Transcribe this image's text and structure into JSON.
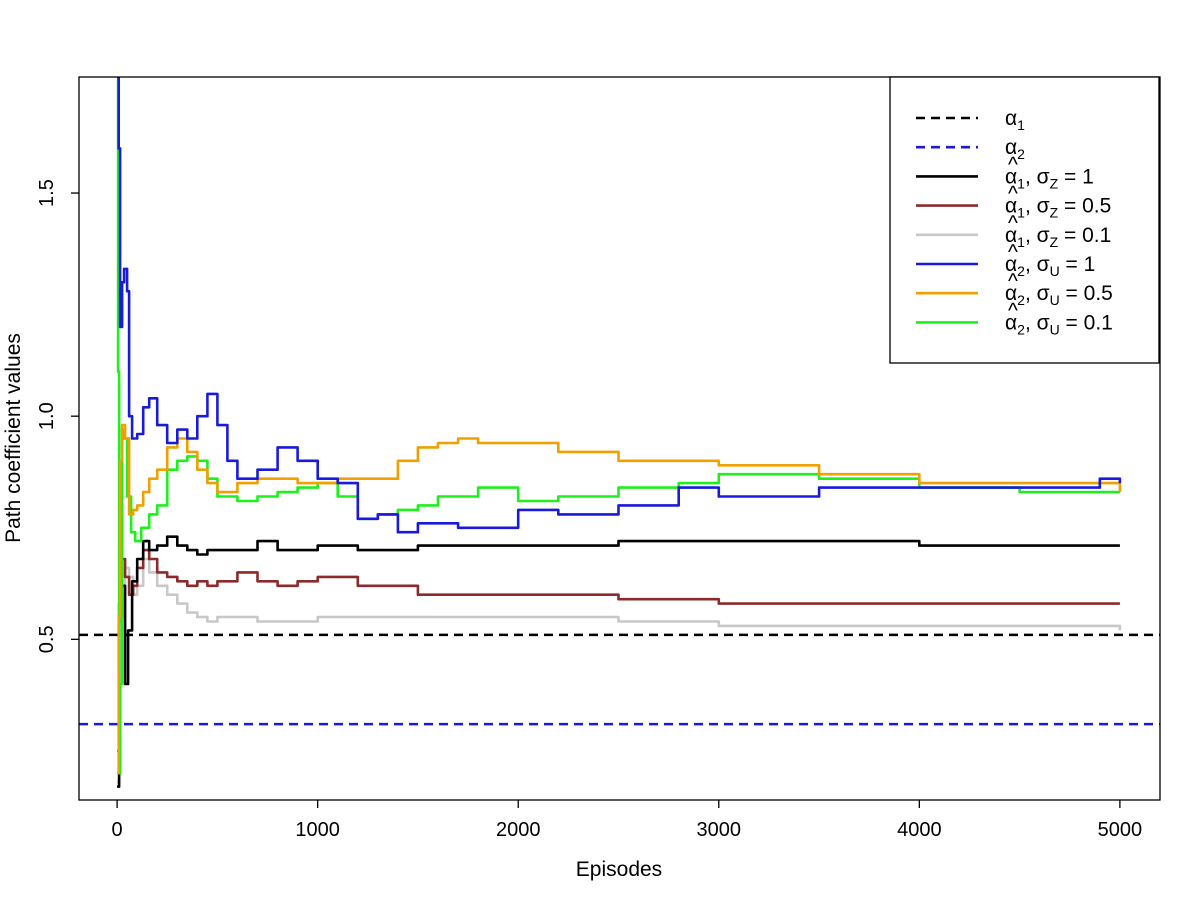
{
  "chart_data": {
    "type": "line",
    "title": "",
    "xlabel": "Episodes",
    "ylabel": "Path coefficient values",
    "xlim": [
      -190,
      5200
    ],
    "ylim": [
      0.14,
      1.76
    ],
    "x_ticks": [
      "0",
      "1000",
      "2000",
      "3000",
      "4000",
      "5000"
    ],
    "y_ticks": [
      "0.5",
      "1.0",
      "1.5"
    ],
    "grid": false,
    "legend_position": "top-right",
    "reference_lines": [
      {
        "name": "α1",
        "label_base": "α",
        "label_sub": "1",
        "value": 0.51,
        "color": "#000000",
        "dash": true
      },
      {
        "name": "α2",
        "label_base": "α",
        "label_sub": "2",
        "value": 0.31,
        "color": "#1a1adb",
        "dash": true
      }
    ],
    "series": [
      {
        "name": "α̂1, σZ = 1",
        "label_base": "α",
        "label_sub": "1",
        "sigma_sub": "Z",
        "label_value": "= 1",
        "color": "#000000",
        "x": [
          0,
          10,
          25,
          40,
          55,
          75,
          100,
          130,
          160,
          200,
          250,
          300,
          350,
          400,
          450,
          500,
          600,
          700,
          800,
          900,
          1000,
          1200,
          1500,
          2000,
          2500,
          3000,
          3500,
          4000,
          4500,
          5000
        ],
        "y": [
          0.17,
          0.55,
          0.62,
          0.4,
          0.52,
          0.63,
          0.68,
          0.72,
          0.7,
          0.71,
          0.73,
          0.71,
          0.7,
          0.69,
          0.7,
          0.7,
          0.7,
          0.72,
          0.7,
          0.7,
          0.71,
          0.7,
          0.71,
          0.71,
          0.72,
          0.72,
          0.72,
          0.71,
          0.71,
          0.71
        ]
      },
      {
        "name": "α̂1, σZ = 0.5",
        "label_base": "α",
        "label_sub": "1",
        "sigma_sub": "Z",
        "label_value": "= 0.5",
        "color": "#8b2b2b",
        "x": [
          0,
          10,
          25,
          40,
          60,
          80,
          100,
          130,
          160,
          200,
          250,
          300,
          350,
          400,
          450,
          500,
          600,
          700,
          800,
          900,
          1000,
          1200,
          1500,
          2000,
          2500,
          3000,
          3500,
          4000,
          4500,
          5000
        ],
        "y": [
          0.25,
          0.58,
          0.68,
          0.64,
          0.6,
          0.62,
          0.66,
          0.7,
          0.68,
          0.65,
          0.64,
          0.63,
          0.62,
          0.63,
          0.62,
          0.63,
          0.65,
          0.63,
          0.62,
          0.63,
          0.64,
          0.62,
          0.6,
          0.6,
          0.59,
          0.58,
          0.58,
          0.58,
          0.58,
          0.58
        ]
      },
      {
        "name": "α̂1, σZ = 0.1",
        "label_base": "α",
        "label_sub": "1",
        "sigma_sub": "Z",
        "label_value": "= 0.1",
        "color": "#c8c8c8",
        "x": [
          0,
          10,
          25,
          40,
          60,
          80,
          100,
          130,
          160,
          200,
          250,
          300,
          350,
          400,
          450,
          500,
          600,
          700,
          800,
          900,
          1000,
          1200,
          1500,
          2000,
          2500,
          3000,
          3500,
          4000,
          4500,
          5000
        ],
        "y": [
          0.18,
          0.54,
          0.62,
          0.66,
          0.64,
          0.6,
          0.62,
          0.68,
          0.65,
          0.62,
          0.6,
          0.58,
          0.56,
          0.55,
          0.54,
          0.55,
          0.55,
          0.54,
          0.54,
          0.54,
          0.55,
          0.55,
          0.55,
          0.55,
          0.54,
          0.53,
          0.53,
          0.53,
          0.53,
          0.52
        ]
      },
      {
        "name": "α̂2, σU = 1",
        "label_base": "α",
        "label_sub": "2",
        "sigma_sub": "U",
        "label_value": "= 1",
        "color": "#1a1adb",
        "x": [
          0,
          8,
          15,
          25,
          35,
          50,
          60,
          75,
          100,
          130,
          160,
          200,
          250,
          300,
          350,
          400,
          450,
          500,
          550,
          600,
          700,
          800,
          900,
          1000,
          1100,
          1200,
          1300,
          1400,
          1500,
          1700,
          2000,
          2200,
          2500,
          2800,
          3000,
          3500,
          4000,
          4500,
          4900,
          5000
        ],
        "y": [
          1.76,
          1.6,
          1.2,
          1.3,
          1.33,
          1.28,
          1.0,
          0.95,
          0.96,
          1.02,
          1.04,
          0.98,
          0.94,
          0.97,
          0.95,
          1.0,
          1.05,
          0.98,
          0.9,
          0.86,
          0.88,
          0.93,
          0.9,
          0.86,
          0.85,
          0.77,
          0.78,
          0.74,
          0.76,
          0.75,
          0.79,
          0.78,
          0.8,
          0.84,
          0.82,
          0.84,
          0.84,
          0.84,
          0.86,
          0.85
        ]
      },
      {
        "name": "α̂2, σU = 0.5",
        "label_base": "α",
        "label_sub": "2",
        "sigma_sub": "U",
        "label_value": "= 0.5",
        "color": "#f0a000",
        "x": [
          0,
          8,
          15,
          25,
          40,
          60,
          80,
          100,
          130,
          160,
          200,
          250,
          300,
          350,
          400,
          450,
          500,
          600,
          700,
          800,
          900,
          1000,
          1100,
          1200,
          1300,
          1400,
          1500,
          1600,
          1700,
          1800,
          2000,
          2200,
          2500,
          3000,
          3500,
          4000,
          4500,
          5000
        ],
        "y": [
          0.2,
          0.55,
          0.9,
          0.98,
          0.95,
          0.78,
          0.79,
          0.8,
          0.83,
          0.86,
          0.88,
          0.93,
          0.95,
          0.92,
          0.88,
          0.85,
          0.83,
          0.85,
          0.86,
          0.86,
          0.85,
          0.85,
          0.86,
          0.86,
          0.86,
          0.9,
          0.93,
          0.94,
          0.95,
          0.94,
          0.94,
          0.92,
          0.9,
          0.89,
          0.87,
          0.85,
          0.85,
          0.83
        ]
      },
      {
        "name": "α̂2, σU = 0.1",
        "label_base": "α",
        "label_sub": "2",
        "sigma_sub": "U",
        "label_value": "= 0.1",
        "color": "#1ef01e",
        "x": [
          0,
          5,
          10,
          15,
          25,
          35,
          50,
          70,
          90,
          120,
          160,
          200,
          250,
          300,
          350,
          400,
          450,
          500,
          550,
          600,
          700,
          800,
          900,
          1000,
          1100,
          1200,
          1300,
          1400,
          1500,
          1600,
          1800,
          2000,
          2200,
          2500,
          2800,
          3000,
          3500,
          4000,
          4500,
          5000
        ],
        "y": [
          1.76,
          1.1,
          0.2,
          0.4,
          0.97,
          0.95,
          0.82,
          0.74,
          0.72,
          0.75,
          0.78,
          0.8,
          0.88,
          0.9,
          0.91,
          0.9,
          0.86,
          0.82,
          0.82,
          0.81,
          0.82,
          0.83,
          0.84,
          0.85,
          0.82,
          0.77,
          0.78,
          0.79,
          0.8,
          0.82,
          0.84,
          0.81,
          0.82,
          0.84,
          0.85,
          0.87,
          0.86,
          0.84,
          0.83,
          0.83
        ]
      }
    ]
  }
}
